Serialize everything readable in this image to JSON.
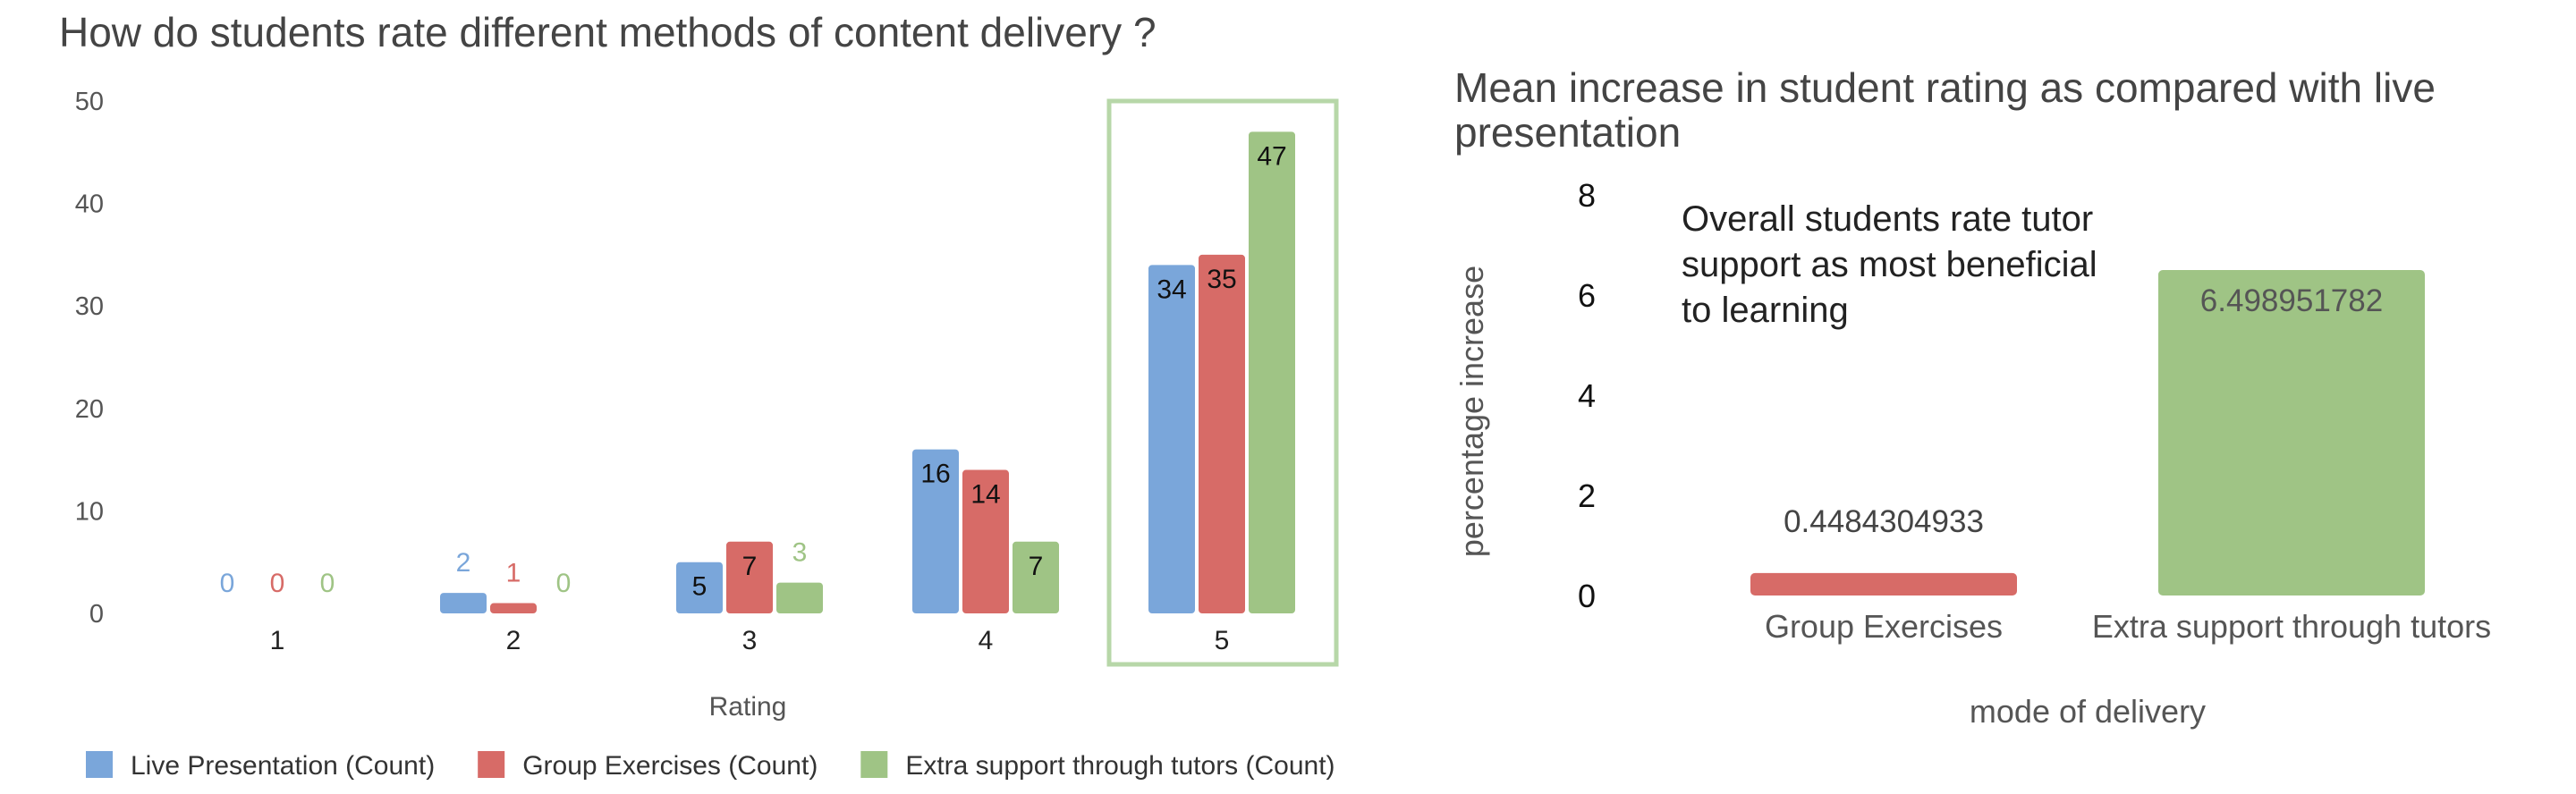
{
  "chart_data": [
    {
      "type": "bar",
      "title": "How do students rate different methods of content delivery ?",
      "xlabel": "Rating",
      "ylabel": "",
      "ylim": [
        0,
        50
      ],
      "yticks": [
        0,
        10,
        20,
        30,
        40,
        50
      ],
      "categories": [
        "1",
        "2",
        "3",
        "4",
        "5"
      ],
      "series": [
        {
          "name": "Live Presentation (Count)",
          "color": "#7aa6da",
          "values": [
            0,
            2,
            5,
            16,
            34
          ]
        },
        {
          "name": "Group Exercises (Count)",
          "color": "#d76b67",
          "values": [
            0,
            1,
            7,
            14,
            35
          ]
        },
        {
          "name": "Extra support through tutors (Count)",
          "color": "#9fc485",
          "values": [
            0,
            0,
            3,
            7,
            47
          ]
        }
      ],
      "legend_position": "bottom-left",
      "highlighted_category": "5",
      "highlight_color": "#b7d7a8",
      "grid": false
    },
    {
      "type": "bar",
      "title": "Mean increase in student rating as compared with live presentation",
      "xlabel": "mode of delivery",
      "ylabel": "percentage increase",
      "ylim": [
        0,
        8
      ],
      "yticks": [
        0,
        2,
        4,
        6,
        8
      ],
      "categories": [
        "Group Exercises",
        "Extra support through tutors"
      ],
      "values": [
        0.4484304933,
        6.498951782
      ],
      "value_labels": [
        "0.4484304933",
        "6.498951782"
      ],
      "colors": [
        "#d76b67",
        "#9fc485"
      ],
      "annotation": "Overall students rate tutor support as most beneficial to learning",
      "grid": false
    }
  ]
}
